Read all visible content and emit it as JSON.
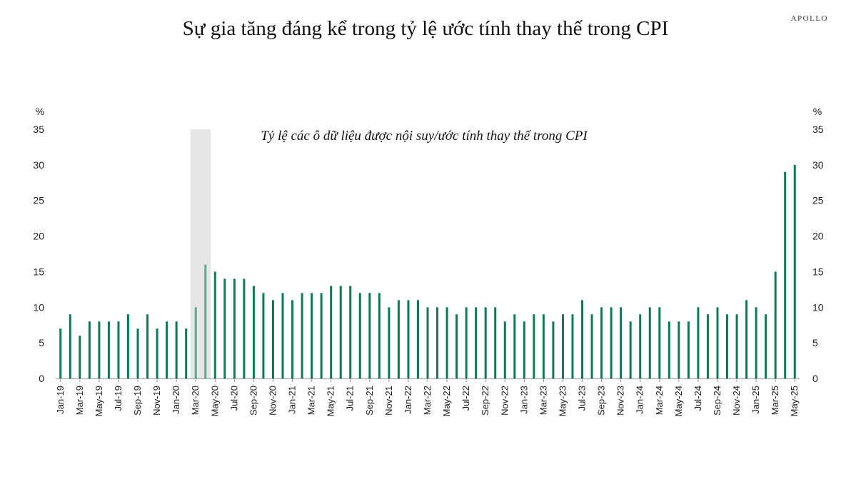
{
  "chart_data": {
    "type": "bar",
    "title": "Sự gia tăng đáng kể trong tỷ lệ ước tính thay thế trong CPI",
    "brand": "APOLLO",
    "annotation": "Tỷ lệ các ô dữ liệu được nội suy/ước tính thay thế trong CPI",
    "y_unit": "%",
    "ylim": [
      0,
      35
    ],
    "yticks": [
      0,
      5,
      10,
      15,
      20,
      25,
      30,
      35
    ],
    "x_tick_labels": [
      "Jan-19",
      "Mar-19",
      "May-19",
      "Jul-19",
      "Sep-19",
      "Nov-19",
      "Jan-20",
      "Mar-20",
      "May-20",
      "Jul-20",
      "Sep-20",
      "Nov-20",
      "Jan-21",
      "Mar-21",
      "May-21",
      "Jul-21",
      "Sep-21",
      "Nov-21",
      "Jan-22",
      "Mar-22",
      "May-22",
      "Jul-22",
      "Sep-22",
      "Nov-22",
      "Jan-23",
      "Mar-23",
      "May-23",
      "Jul-23",
      "Sep-23",
      "Nov-23",
      "Jan-24",
      "Mar-24",
      "May-24",
      "Jul-24",
      "Sep-24",
      "Nov-24",
      "Jan-25",
      "Mar-25",
      "May-25"
    ],
    "categories": [
      "Jan-19",
      "Feb-19",
      "Mar-19",
      "Apr-19",
      "May-19",
      "Jun-19",
      "Jul-19",
      "Aug-19",
      "Sep-19",
      "Oct-19",
      "Nov-19",
      "Dec-19",
      "Jan-20",
      "Feb-20",
      "Mar-20",
      "Apr-20",
      "May-20",
      "Jun-20",
      "Jul-20",
      "Aug-20",
      "Sep-20",
      "Oct-20",
      "Nov-20",
      "Dec-20",
      "Jan-21",
      "Feb-21",
      "Mar-21",
      "Apr-21",
      "May-21",
      "Jun-21",
      "Jul-21",
      "Aug-21",
      "Sep-21",
      "Oct-21",
      "Nov-21",
      "Dec-21",
      "Jan-22",
      "Feb-22",
      "Mar-22",
      "Apr-22",
      "May-22",
      "Jun-22",
      "Jul-22",
      "Aug-22",
      "Sep-22",
      "Oct-22",
      "Nov-22",
      "Dec-22",
      "Jan-23",
      "Feb-23",
      "Mar-23",
      "Apr-23",
      "May-23",
      "Jun-23",
      "Jul-23",
      "Aug-23",
      "Sep-23",
      "Oct-23",
      "Nov-23",
      "Dec-23",
      "Jan-24",
      "Feb-24",
      "Mar-24",
      "Apr-24",
      "May-24",
      "Jun-24",
      "Jul-24",
      "Aug-24",
      "Sep-24",
      "Oct-24",
      "Nov-24",
      "Dec-24",
      "Jan-25",
      "Feb-25",
      "Mar-25",
      "Apr-25",
      "May-25"
    ],
    "values": [
      7,
      9,
      6,
      8,
      8,
      8,
      8,
      9,
      7,
      9,
      7,
      8,
      8,
      7,
      10,
      16,
      15,
      14,
      14,
      14,
      13,
      12,
      11,
      12,
      11,
      12,
      12,
      12,
      13,
      13,
      13,
      12,
      12,
      12,
      10,
      11,
      11,
      11,
      10,
      10,
      10,
      9,
      10,
      10,
      10,
      10,
      8,
      9,
      8,
      9,
      9,
      8,
      9,
      9,
      11,
      9,
      10,
      10,
      10,
      8,
      9,
      10,
      10,
      8,
      8,
      8,
      10,
      9,
      10,
      9,
      9,
      11,
      10,
      9,
      15,
      29,
      30
    ],
    "shaded_period": [
      "Mar-20",
      "Apr-20"
    ],
    "bar_color": "#0b7a55",
    "shaded_bar_color": "#5fa88a",
    "shade_color": "#e6e6e6",
    "grid": false,
    "legend": "none"
  }
}
